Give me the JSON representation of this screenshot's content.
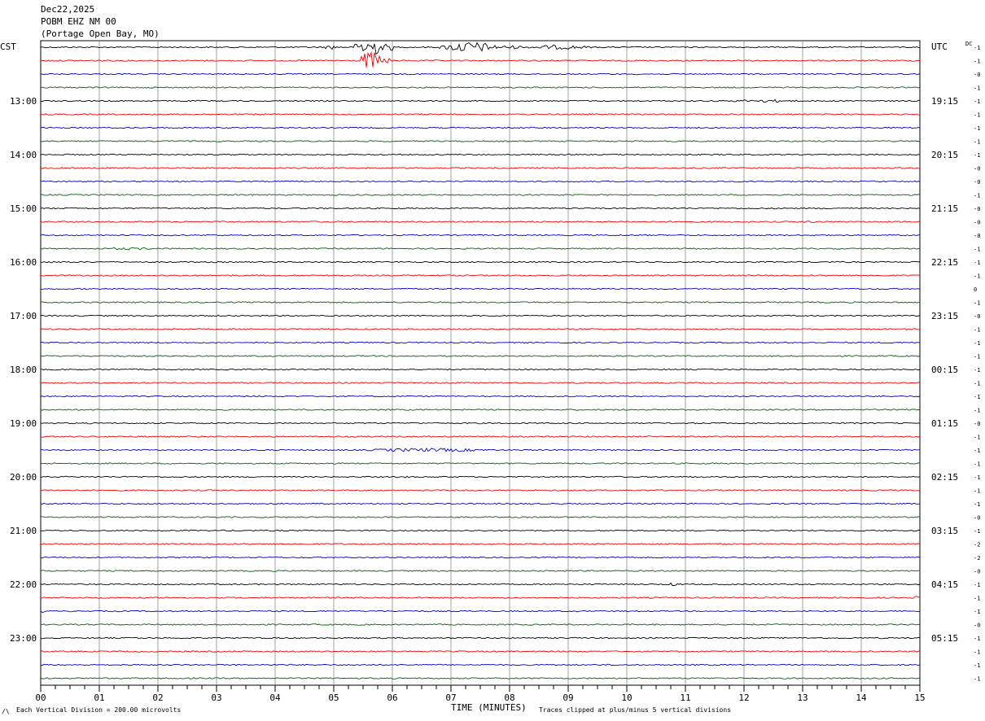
{
  "header": {
    "date": "Dec22,2025",
    "station": "POBM EHZ NM 00",
    "location": "(Portage Open Bay, MO)",
    "left_tz": "CST",
    "right_tz": "UTC",
    "dc_label": "DC"
  },
  "footer": {
    "scale_note": "Each Vertical Division =  200.00 microvolts",
    "xlabel": "TIME (MINUTES)",
    "clip_note": "Traces clipped at plus/minus 5 vertical divisions",
    "corner_mark": "/\\"
  },
  "colors": {
    "trace_cycle": [
      "#000000",
      "#ee0000",
      "#0000cc",
      "#006400"
    ],
    "grid": "#888888"
  },
  "chart_data": {
    "type": "line",
    "title": "POBM EHZ NM 00",
    "xlabel": "TIME (MINUTES)",
    "x_ticks": [
      "00",
      "01",
      "02",
      "03",
      "04",
      "05",
      "06",
      "07",
      "08",
      "09",
      "10",
      "11",
      "12",
      "13",
      "14",
      "15"
    ],
    "xlim": [
      0,
      15
    ],
    "minor_ticks_per_minute": 4,
    "row_minutes": 15,
    "rows_count": 48,
    "left_hour_labels": [
      {
        "row": 4,
        "label": "13:00"
      },
      {
        "row": 8,
        "label": "14:00"
      },
      {
        "row": 12,
        "label": "15:00"
      },
      {
        "row": 16,
        "label": "16:00"
      },
      {
        "row": 20,
        "label": "17:00"
      },
      {
        "row": 24,
        "label": "18:00"
      },
      {
        "row": 28,
        "label": "19:00"
      },
      {
        "row": 32,
        "label": "20:00"
      },
      {
        "row": 36,
        "label": "21:00"
      },
      {
        "row": 40,
        "label": "22:00"
      },
      {
        "row": 44,
        "label": "23:00"
      }
    ],
    "right_hour_labels": [
      {
        "row": 4,
        "label": "19:15"
      },
      {
        "row": 8,
        "label": "20:15"
      },
      {
        "row": 12,
        "label": "21:15"
      },
      {
        "row": 16,
        "label": "22:15"
      },
      {
        "row": 20,
        "label": "23:15"
      },
      {
        "row": 24,
        "label": "00:15"
      },
      {
        "row": 28,
        "label": "01:15"
      },
      {
        "row": 32,
        "label": "02:15"
      },
      {
        "row": 36,
        "label": "03:15"
      },
      {
        "row": 40,
        "label": "04:15"
      },
      {
        "row": 44,
        "label": "05:15"
      }
    ],
    "dc_offsets": [
      "-1",
      "-1",
      "-0",
      "-1",
      "-1",
      "-1",
      "-1",
      "-1",
      "-1",
      "-0",
      "-0",
      "-1",
      "-0",
      "-0",
      "-0",
      "-1",
      "-1",
      "-1",
      "0",
      "-1",
      "-0",
      "-1",
      "-1",
      "-1",
      "-1",
      "-1",
      "-1",
      "-1",
      "-0",
      "-1",
      "-1",
      "-1",
      "-1",
      "-1",
      "-1",
      "-0",
      "-1",
      "-2",
      "-2",
      "-0",
      "-1",
      "-1",
      "-1",
      "-0",
      "-1",
      "-1",
      "-1",
      "-1"
    ],
    "events": [
      {
        "row": 0,
        "start_min": 4.8,
        "end_min": 5.2,
        "amp_div": 1.2
      },
      {
        "row": 0,
        "start_min": 5.35,
        "end_min": 6.0,
        "amp_div": 6.0
      },
      {
        "row": 0,
        "start_min": 6.8,
        "end_min": 8.2,
        "amp_div": 3.0
      },
      {
        "row": 0,
        "start_min": 8.2,
        "end_min": 9.9,
        "amp_div": 1.2
      },
      {
        "row": 1,
        "start_min": 5.4,
        "end_min": 6.0,
        "amp_div": 5.0
      },
      {
        "row": 4,
        "start_min": 11.6,
        "end_min": 13.6,
        "amp_div": 0.8
      },
      {
        "row": 9,
        "start_min": 0.9,
        "end_min": 1.4,
        "amp_div": 0.4
      },
      {
        "row": 13,
        "start_min": 12.8,
        "end_min": 13.9,
        "amp_div": 0.6
      },
      {
        "row": 15,
        "start_min": 0.9,
        "end_min": 2.6,
        "amp_div": 0.7
      },
      {
        "row": 16,
        "start_min": 0.0,
        "end_min": 1.0,
        "amp_div": 0.5
      },
      {
        "row": 30,
        "start_min": 5.3,
        "end_min": 8.8,
        "amp_div": 1.0
      },
      {
        "row": 32,
        "start_min": 6.1,
        "end_min": 6.4,
        "amp_div": 0.8
      },
      {
        "row": 32,
        "start_min": 12.7,
        "end_min": 13.0,
        "amp_div": 0.6
      },
      {
        "row": 40,
        "start_min": 10.7,
        "end_min": 11.0,
        "amp_div": 1.0
      },
      {
        "row": 41,
        "start_min": 14.9,
        "end_min": 15.0,
        "amp_div": 1.0
      },
      {
        "row": 42,
        "start_min": 0.0,
        "end_min": 0.1,
        "amp_div": 1.0
      }
    ]
  }
}
